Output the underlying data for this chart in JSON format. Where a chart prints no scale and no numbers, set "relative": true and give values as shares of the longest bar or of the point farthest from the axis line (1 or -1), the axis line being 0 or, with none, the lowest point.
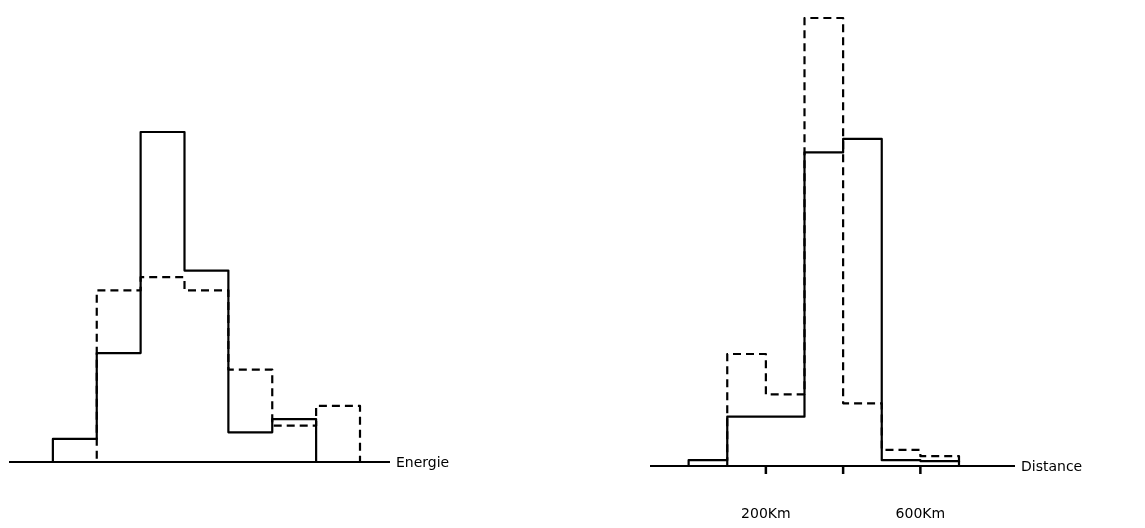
{
  "chart_data": [
    {
      "type": "step",
      "xlabel": "Energie",
      "relative": true,
      "categories": [
        null,
        null,
        null,
        null,
        null,
        null,
        null,
        null,
        null
      ],
      "tick_labels": false,
      "series": [
        {
          "color": "#000000",
          "line_style": "solid",
          "values": [
            0,
            0.07,
            0.33,
            1,
            0.58,
            0.09,
            0.13,
            0,
            0
          ]
        },
        {
          "color": "#000000",
          "line_style": "dashed",
          "values": [
            0,
            0,
            0.52,
            0.56,
            0.52,
            0.28,
            0.11,
            0.17,
            0
          ]
        }
      ]
    },
    {
      "type": "step",
      "xlabel": "Distance",
      "relative": true,
      "x": [
        -100,
        0,
        100,
        200,
        300,
        400,
        500,
        600,
        700
      ],
      "xlim": [
        -100,
        845
      ],
      "xticks": [
        {
          "value": 200,
          "label": "200Km"
        },
        {
          "value": 400,
          "label": null
        },
        {
          "value": 600,
          "label": "600Km"
        }
      ],
      "tick_labels": "x",
      "series": [
        {
          "color": "#000000",
          "line_style": "solid",
          "values": [
            0,
            0.013,
            0.11,
            0.11,
            0.7,
            0.73,
            0.013,
            0.011,
            0
          ]
        },
        {
          "color": "#000000",
          "line_style": "dashed",
          "values": [
            0,
            0,
            0.25,
            0.16,
            1,
            0.14,
            0.036,
            0.022,
            0
          ]
        }
      ]
    }
  ]
}
